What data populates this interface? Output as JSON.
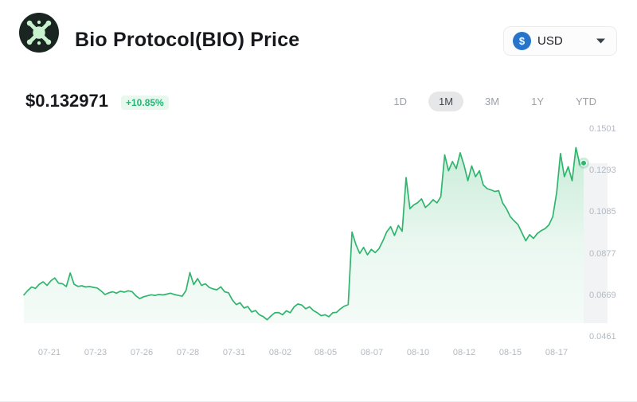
{
  "header": {
    "title": "Bio Protocol(BIO) Price",
    "currency_selector": {
      "selected": "USD",
      "coin_symbol": "$",
      "coin_color": "#2775ca"
    }
  },
  "price_section": {
    "price": "$0.132971",
    "change": "+10.85%",
    "change_color": "#22b573",
    "range_buttons": [
      {
        "label": "1D",
        "active": false
      },
      {
        "label": "1M",
        "active": true
      },
      {
        "label": "3M",
        "active": false
      },
      {
        "label": "1Y",
        "active": false
      },
      {
        "label": "YTD",
        "active": false
      }
    ]
  },
  "chart_data": {
    "type": "area",
    "title": "Bio Protocol (BIO) price, 1 month, USD",
    "line_color": "#2fb56d",
    "fill_color": "#2fb56d",
    "axis_label_color": "#b3b9c1",
    "legend": "none",
    "grid": false,
    "y_axis_side": "right",
    "y_tick_labels": [
      "0.1501",
      "0.1293",
      "0.1085",
      "0.0877",
      "0.0669",
      "0.0461"
    ],
    "ylim": [
      0.0461,
      0.1501
    ],
    "x_tick_labels": [
      "07-21",
      "07-23",
      "07-26",
      "07-28",
      "07-31",
      "08-02",
      "08-05",
      "08-07",
      "08-10",
      "08-12",
      "08-15",
      "08-17"
    ],
    "current_value": 0.132971,
    "values": [
      0.067,
      0.0692,
      0.071,
      0.0703,
      0.0724,
      0.0736,
      0.0718,
      0.0741,
      0.0755,
      0.0729,
      0.0726,
      0.0712,
      0.078,
      0.0724,
      0.0713,
      0.0716,
      0.071,
      0.0713,
      0.0708,
      0.0705,
      0.069,
      0.0672,
      0.0681,
      0.0686,
      0.0679,
      0.0689,
      0.0684,
      0.0691,
      0.0687,
      0.0666,
      0.0652,
      0.0661,
      0.0666,
      0.0671,
      0.0668,
      0.0673,
      0.067,
      0.0674,
      0.0679,
      0.0672,
      0.0668,
      0.0664,
      0.0692,
      0.0782,
      0.0722,
      0.0752,
      0.0718,
      0.0726,
      0.0708,
      0.07,
      0.0696,
      0.0711,
      0.0686,
      0.0681,
      0.0645,
      0.0622,
      0.0631,
      0.0605,
      0.0612,
      0.0585,
      0.0592,
      0.0571,
      0.0562,
      0.0546,
      0.0565,
      0.0581,
      0.0582,
      0.0571,
      0.0591,
      0.0581,
      0.0611,
      0.0625,
      0.0619,
      0.0601,
      0.0611,
      0.0592,
      0.0581,
      0.0566,
      0.0571,
      0.0561,
      0.0581,
      0.0583,
      0.0601,
      0.0614,
      0.0622,
      0.0985,
      0.0922,
      0.0878,
      0.0908,
      0.0871,
      0.0898,
      0.0882,
      0.0902,
      0.0941,
      0.0986,
      0.1012,
      0.0968,
      0.1018,
      0.0989,
      0.1258,
      0.1102,
      0.1121,
      0.1132,
      0.1151,
      0.1108,
      0.1125,
      0.1147,
      0.1131,
      0.1162,
      0.1371,
      0.1292,
      0.1338,
      0.1302,
      0.1382,
      0.1321,
      0.1242,
      0.1316,
      0.1262,
      0.1292,
      0.1221,
      0.1202,
      0.1196,
      0.1188,
      0.1192,
      0.1131,
      0.1102,
      0.1062,
      0.1041,
      0.1022,
      0.0982,
      0.0941,
      0.0972,
      0.0953,
      0.0978,
      0.0992,
      0.1002,
      0.1021,
      0.1062,
      0.1182,
      0.1378,
      0.1262,
      0.1312,
      0.1242,
      0.1408,
      0.1322,
      0.133
    ]
  }
}
